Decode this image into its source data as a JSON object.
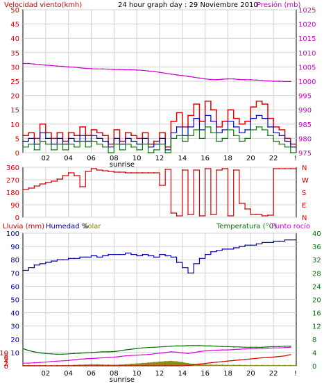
{
  "colors": {
    "wind": "#e00000",
    "wind_avg": "#0000c0",
    "wind_min": "#008000",
    "pressure": "#d000d0",
    "direction": "#d00000",
    "humidity": "#0000a0",
    "temperature": "#007000",
    "dewpoint": "#e000e0",
    "rain": "#d00000",
    "solar": "#808000",
    "frame": "#000000",
    "grid": "#d0d0d0",
    "bg": "#ffffff"
  },
  "header": {
    "wind_label": "Velocidad viento(kmh)",
    "title": "24 hour graph day : 29 Noviembre 2010",
    "pressure_label": "Presión (mb)"
  },
  "bottom_header": {
    "rain_label": "Lluvia (mm)",
    "humidity_label": "Humedad %",
    "solar_label": "Solar",
    "temp_label": "Temperatura (°C)",
    "dew_label": "Punto rocío"
  },
  "sunrise_label": "sunrise",
  "x_ticks": [
    "02",
    "04",
    "06",
    "08",
    "10",
    "12",
    "14",
    "16",
    "18",
    "20",
    "22"
  ],
  "end_tick": "!",
  "chart_data": [
    {
      "type": "line",
      "panel": "wind-pressure",
      "x_hours": [
        0,
        0.5,
        1,
        1.5,
        2,
        2.5,
        3,
        3.5,
        4,
        4.5,
        5,
        5.5,
        6,
        6.5,
        7,
        7.5,
        8,
        8.5,
        9,
        9.5,
        10,
        10.5,
        11,
        11.5,
        12,
        12.5,
        13,
        13.5,
        14,
        14.5,
        15,
        15.5,
        16,
        16.5,
        17,
        17.5,
        18,
        18.5,
        19,
        19.5,
        20,
        20.5,
        21,
        21.5,
        22,
        22.5,
        23,
        23.5
      ],
      "y_left_ticks": [
        "0",
        "5",
        "10",
        "15",
        "20",
        "25",
        "30",
        "35",
        "40",
        "45",
        "50"
      ],
      "y_right_ticks": [
        "975",
        "980",
        "985",
        "990",
        "995",
        "1000",
        "1005",
        "1010",
        "1015",
        "1020",
        "1025"
      ],
      "ylim_left": [
        0,
        50
      ],
      "ylim_right": [
        975,
        1025
      ],
      "series": [
        {
          "key": "gust",
          "values": [
            6,
            7,
            5,
            10,
            7,
            5,
            7,
            4,
            7,
            6,
            9,
            6,
            8,
            7,
            6,
            3,
            8,
            4,
            7,
            6,
            5,
            7,
            3,
            4,
            7,
            2,
            11,
            14,
            9,
            13,
            17,
            11,
            18,
            15,
            9,
            11,
            15,
            12,
            10,
            11,
            16,
            18,
            17,
            12,
            9,
            8,
            5,
            3
          ]
        },
        {
          "key": "avg",
          "values": [
            4,
            5,
            3,
            7,
            5,
            3,
            5,
            3,
            5,
            4,
            6,
            4,
            6,
            5,
            4,
            2,
            5,
            3,
            5,
            4,
            3,
            5,
            2,
            3,
            5,
            1,
            7,
            9,
            6,
            9,
            12,
            8,
            13,
            11,
            7,
            8,
            11,
            9,
            7,
            8,
            12,
            13,
            12,
            9,
            7,
            6,
            4,
            2
          ]
        },
        {
          "key": "min",
          "values": [
            2,
            3,
            1,
            4,
            3,
            1,
            3,
            1,
            3,
            2,
            4,
            2,
            4,
            3,
            2,
            0,
            3,
            1,
            3,
            2,
            1,
            3,
            0,
            1,
            3,
            0,
            5,
            6,
            4,
            6,
            8,
            5,
            9,
            7,
            4,
            5,
            8,
            6,
            4,
            5,
            8,
            9,
            8,
            6,
            4,
            3,
            2,
            0
          ]
        },
        {
          "key": "pressure",
          "values": [
            1006.2,
            1006.2,
            1006,
            1005.8,
            1005.6,
            1005.5,
            1005.3,
            1005.2,
            1005,
            1004.9,
            1004.7,
            1004.5,
            1004.4,
            1004.3,
            1004.3,
            1004.2,
            1004.1,
            1004.1,
            1004,
            1004,
            1003.9,
            1003.8,
            1003.6,
            1003.4,
            1003.1,
            1002.8,
            1002.5,
            1002.2,
            1002,
            1001.7,
            1001.4,
            1001.1,
            1000.8,
            1000.6,
            1000.5,
            1000.7,
            1000.8,
            1000.8,
            1000.6,
            1000.5,
            1000.5,
            1000.4,
            1000.2,
            1000.1,
            1000,
            1000,
            999.9,
            999.9
          ]
        }
      ]
    },
    {
      "type": "line",
      "panel": "wind-direction",
      "x_hours": [
        0,
        0.5,
        1,
        1.5,
        2,
        2.5,
        3,
        3.5,
        4,
        4.5,
        5,
        5.5,
        6,
        6.5,
        7,
        7.5,
        8,
        8.5,
        9,
        9.5,
        10,
        10.5,
        11,
        11.5,
        12,
        12.5,
        13,
        13.5,
        14,
        14.5,
        15,
        15.5,
        16,
        16.5,
        17,
        17.5,
        18,
        18.5,
        19,
        19.5,
        20,
        20.5,
        21,
        21.5,
        22,
        22.5,
        23,
        23.5
      ],
      "y_left_ticks": [
        "0",
        "90",
        "180",
        "270",
        "360"
      ],
      "y_right_labels": [
        "N",
        "W",
        "S",
        "E",
        "N"
      ],
      "ylim": [
        0,
        360
      ],
      "series": [
        {
          "key": "direction",
          "values": [
            200,
            210,
            225,
            240,
            250,
            260,
            275,
            300,
            320,
            300,
            220,
            330,
            350,
            340,
            335,
            330,
            325,
            325,
            320,
            320,
            320,
            320,
            320,
            320,
            230,
            345,
            30,
            10,
            340,
            20,
            340,
            10,
            350,
            20,
            340,
            350,
            10,
            340,
            100,
            60,
            20,
            20,
            10,
            15,
            350,
            350,
            350,
            350
          ]
        }
      ]
    },
    {
      "type": "line",
      "panel": "humidity-temp",
      "x_hours": [
        0,
        0.5,
        1,
        1.5,
        2,
        2.5,
        3,
        3.5,
        4,
        4.5,
        5,
        5.5,
        6,
        6.5,
        7,
        7.5,
        8,
        8.5,
        9,
        9.5,
        10,
        10.5,
        11,
        11.5,
        12,
        12.5,
        13,
        13.5,
        14,
        14.5,
        15,
        15.5,
        16,
        16.5,
        17,
        17.5,
        18,
        18.5,
        19,
        19.5,
        20,
        20.5,
        21,
        21.5,
        22,
        22.5,
        23,
        23.5
      ],
      "y_left_ticks": [
        "0",
        "2",
        "4",
        "6",
        "8",
        "10"
      ],
      "y_humidity_ticks": [
        "0",
        "10",
        "20",
        "30",
        "40",
        "50",
        "60",
        "70",
        "80",
        "90",
        "100"
      ],
      "y_left_top_label": "100",
      "y_right_ticks": [
        "0",
        "4",
        "8",
        "12",
        "16",
        "20",
        "24",
        "28",
        "32",
        "36",
        "40"
      ],
      "ylim_humidity": [
        0,
        100
      ],
      "ylim_temp": [
        0,
        40
      ],
      "series": [
        {
          "key": "humidity",
          "values": [
            72,
            74,
            76,
            77,
            78,
            79,
            80,
            80,
            81,
            81,
            82,
            82,
            83,
            82,
            83,
            84,
            84,
            84,
            85,
            84,
            83,
            84,
            83,
            82,
            84,
            83,
            82,
            78,
            74,
            70,
            77,
            81,
            84,
            86,
            87,
            88,
            88,
            89,
            90,
            91,
            91,
            92,
            93,
            93,
            94,
            94,
            95,
            95
          ]
        },
        {
          "key": "temperature",
          "values": [
            5.2,
            4.6,
            4.2,
            3.9,
            3.7,
            3.6,
            3.5,
            3.5,
            3.6,
            3.7,
            3.8,
            3.9,
            4.0,
            4.1,
            4.2,
            4.2,
            4.3,
            4.5,
            4.8,
            5.0,
            5.2,
            5.4,
            5.5,
            5.6,
            5.7,
            5.8,
            5.9,
            6.0,
            6.0,
            6.1,
            6.1,
            6.1,
            6.0,
            6.0,
            5.9,
            5.8,
            5.8,
            5.7,
            5.7,
            5.6,
            5.6,
            5.6,
            5.6,
            5.7,
            5.8,
            5.8,
            5.9,
            5.9
          ]
        },
        {
          "key": "dewpoint",
          "values": [
            0.8,
            0.8,
            0.9,
            1.0,
            1.1,
            1.3,
            1.4,
            1.5,
            1.6,
            1.8,
            2.0,
            2.1,
            2.2,
            2.3,
            2.4,
            2.5,
            2.6,
            2.8,
            3.0,
            3.1,
            3.2,
            3.3,
            3.4,
            3.6,
            3.8,
            4.0,
            4.2,
            4.1,
            3.9,
            3.7,
            4.0,
            4.3,
            4.5,
            4.6,
            4.7,
            4.8,
            4.8,
            4.9,
            5.0,
            5.1,
            5.2,
            5.2,
            5.3,
            5.3,
            5.4,
            5.4,
            5.5,
            5.6
          ]
        },
        {
          "key": "rain",
          "values": [
            0,
            0,
            0,
            0,
            0,
            0,
            0,
            0,
            0,
            0,
            0,
            0,
            0,
            0,
            0,
            0,
            0,
            0,
            0,
            0,
            0,
            0,
            0,
            0,
            0,
            0,
            0,
            0,
            0,
            0.3,
            0.8,
            1.3,
            1.8,
            2.3,
            2.7,
            3.1,
            3.6,
            4.0,
            4.4,
            4.8,
            5.2,
            5.6,
            6.0,
            6.3,
            6.6,
            7.0,
            7.5,
            8.4
          ]
        },
        {
          "key": "solar",
          "values": [
            0.4,
            0.4,
            0.3,
            0.3,
            0.3,
            0.2,
            0.3,
            0.3,
            0.4,
            0.5,
            0.7,
            0.8,
            0.9,
            0.9,
            0.8,
            0.7,
            0.6,
            0.8,
            1.0,
            1.3,
            1.6,
            1.9,
            2.2,
            2.6,
            3.0,
            3.3,
            3.5,
            3.2,
            2.6,
            1.8,
            1.2,
            0.9,
            0.8,
            0.7,
            0.6,
            0.6,
            0.5,
            0.5,
            0.5,
            0.4,
            0.4,
            0.4,
            0.4,
            0.4,
            0.4,
            0.4,
            0.4,
            0.4
          ]
        }
      ]
    }
  ]
}
